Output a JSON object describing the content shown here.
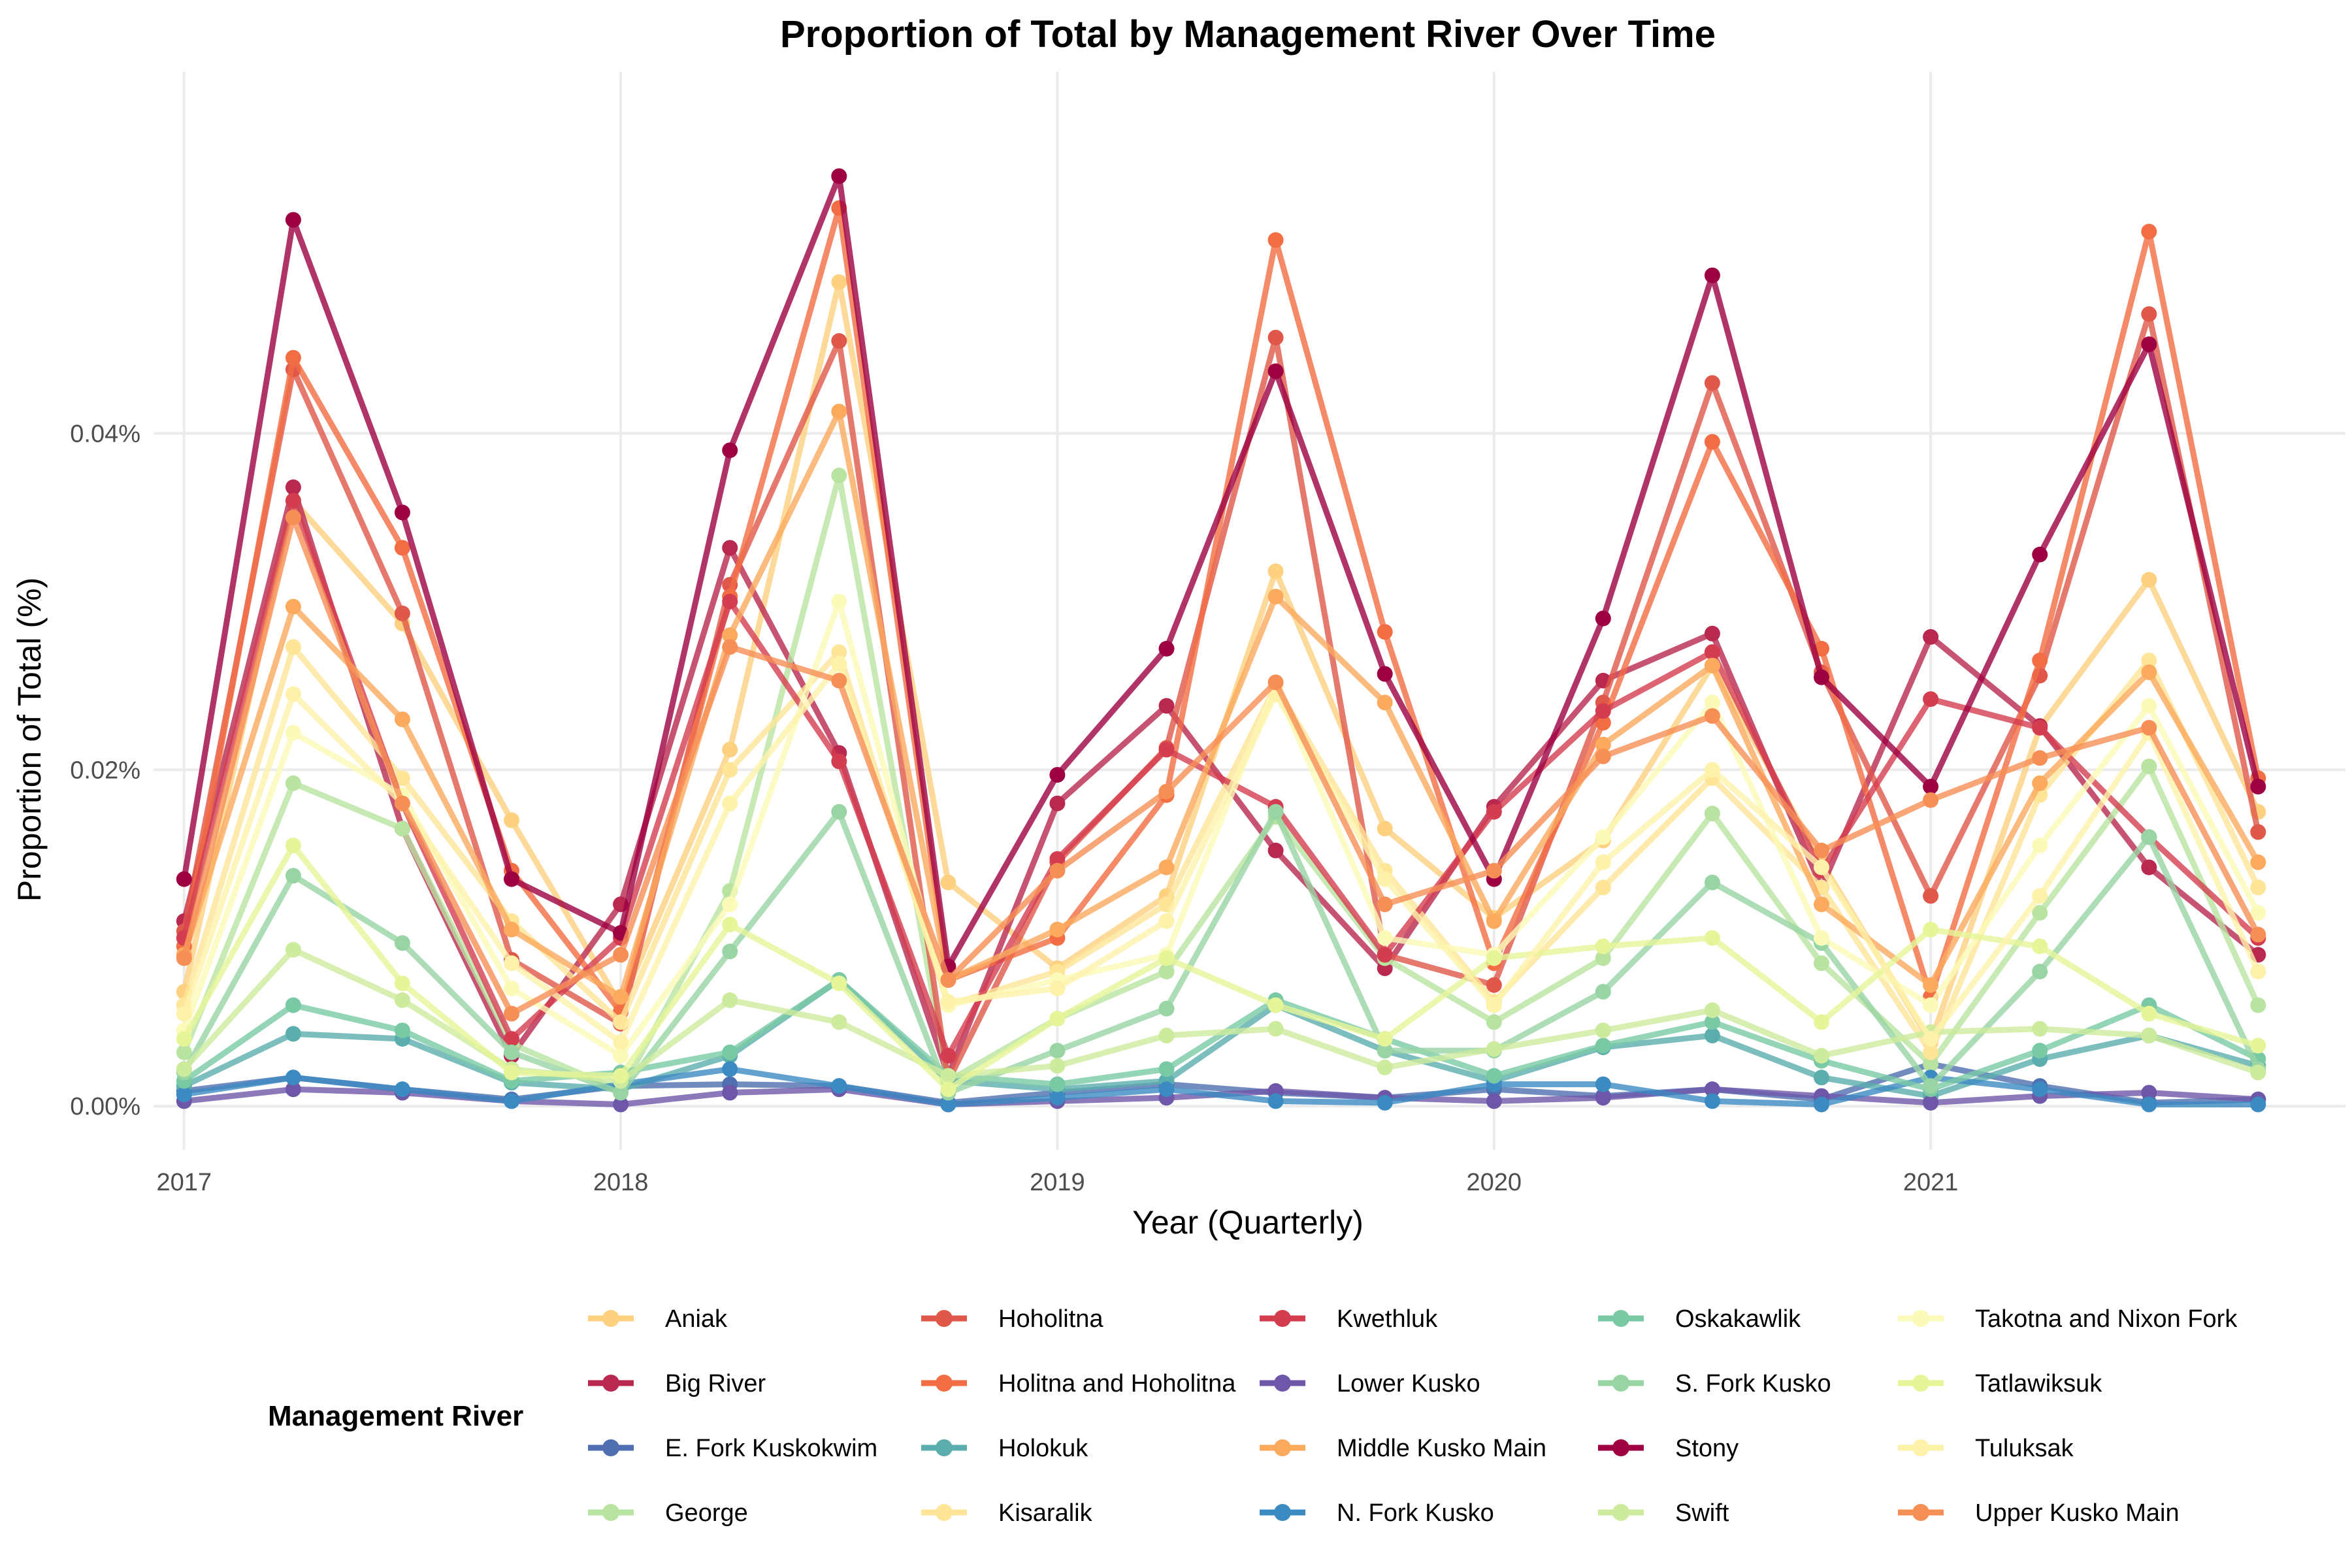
{
  "chart_data": {
    "type": "line",
    "title": "Proportion of Total by Management River Over Time",
    "xlabel": "Year (Quarterly)",
    "ylabel": "Proportion of Total (%)",
    "x": [
      2017.0,
      2017.25,
      2017.5,
      2017.75,
      2018.0,
      2018.25,
      2018.5,
      2018.75,
      2019.0,
      2019.25,
      2019.5,
      2019.75,
      2020.0,
      2020.25,
      2020.5,
      2020.75,
      2021.0,
      2021.25,
      2021.5,
      2021.75
    ],
    "xlim": [
      2016.93,
      2021.95
    ],
    "ylim": [
      -0.0026,
      0.0615
    ],
    "x_ticks": [
      2017,
      2018,
      2019,
      2020,
      2021
    ],
    "x_tick_labels": [
      "2017",
      "2018",
      "2019",
      "2020",
      "2021"
    ],
    "y_ticks": [
      0,
      0.02,
      0.04
    ],
    "y_tick_labels": [
      "0.00%",
      "0.02%",
      "0.04%"
    ],
    "grid": true,
    "legend": {
      "title": "Management River",
      "placement": "bottom",
      "columns": 5
    },
    "series": [
      {
        "name": "Aniak",
        "color": "#FDD17F",
        "values": [
          0.0068,
          0.036,
          0.0287,
          0.017,
          0.006,
          0.0212,
          0.049,
          0.0133,
          0.0082,
          0.0125,
          0.0318,
          0.0165,
          0.0112,
          0.0158,
          0.0262,
          0.0145,
          0.0038,
          0.0225,
          0.0313,
          0.0175
        ]
      },
      {
        "name": "Big River",
        "color": "#B8284F",
        "values": [
          0.011,
          0.0368,
          0.0165,
          0.003,
          0.012,
          0.0332,
          0.021,
          0.0018,
          0.018,
          0.0238,
          0.0152,
          0.0082,
          0.0178,
          0.0253,
          0.0281,
          0.013,
          0.0279,
          0.0226,
          0.0142,
          0.009
        ]
      },
      {
        "name": "E. Fork Kuskokwim",
        "color": "#4F6FB0",
        "values": [
          0.0009,
          0.0017,
          0.001,
          0.0004,
          0.0012,
          0.0013,
          0.0012,
          0.0002,
          0.0008,
          0.0013,
          0.0008,
          0.0005,
          0.001,
          0.0006,
          0.001,
          0.0004,
          0.0025,
          0.0012,
          0.0002,
          0.0004
        ]
      },
      {
        "name": "George",
        "color": "#B9E3A1",
        "values": [
          0.0032,
          0.0192,
          0.0165,
          0.0037,
          0.0009,
          0.0128,
          0.0375,
          0.0015,
          0.0052,
          0.008,
          0.0172,
          0.0088,
          0.005,
          0.0088,
          0.0174,
          0.0085,
          0.0025,
          0.0115,
          0.0202,
          0.006
        ]
      },
      {
        "name": "Hoholitna",
        "color": "#E0584A",
        "values": [
          0.0104,
          0.0438,
          0.0293,
          0.0087,
          0.0049,
          0.031,
          0.0455,
          0.0015,
          0.0145,
          0.0213,
          0.0457,
          0.009,
          0.0072,
          0.024,
          0.043,
          0.0258,
          0.0125,
          0.0256,
          0.0471,
          0.0163
        ]
      },
      {
        "name": "Holitna and Hoholitna",
        "color": "#F26D44",
        "values": [
          0.0095,
          0.0445,
          0.0332,
          0.014,
          0.0056,
          0.0303,
          0.0534,
          0.0075,
          0.01,
          0.0185,
          0.0515,
          0.0282,
          0.0085,
          0.0228,
          0.0395,
          0.0272,
          0.0065,
          0.0265,
          0.052,
          0.0195
        ]
      },
      {
        "name": "Holokuk",
        "color": "#5BAEAD",
        "values": [
          0.0012,
          0.0043,
          0.004,
          0.0014,
          0.001,
          0.003,
          0.0075,
          0.0015,
          0.001,
          0.0015,
          0.006,
          0.0033,
          0.0015,
          0.0035,
          0.0042,
          0.0017,
          0.0006,
          0.0028,
          0.0042,
          0.0024
        ]
      },
      {
        "name": "Kisaralik",
        "color": "#FEE597",
        "values": [
          0.006,
          0.0273,
          0.0195,
          0.011,
          0.005,
          0.02,
          0.027,
          0.006,
          0.008,
          0.012,
          0.025,
          0.014,
          0.0062,
          0.013,
          0.0195,
          0.013,
          0.0032,
          0.0185,
          0.0265,
          0.013
        ]
      },
      {
        "name": "Kwethluk",
        "color": "#D43D4F",
        "values": [
          0.01,
          0.036,
          0.018,
          0.004,
          0.01,
          0.03,
          0.0205,
          0.003,
          0.0147,
          0.0212,
          0.0178,
          0.009,
          0.0175,
          0.0235,
          0.027,
          0.014,
          0.0242,
          0.0225,
          0.016,
          0.01
        ]
      },
      {
        "name": "Lower Kusko",
        "color": "#6E57A9",
        "values": [
          0.0003,
          0.001,
          0.0008,
          0.0003,
          0.0001,
          0.0008,
          0.001,
          0.0001,
          0.0003,
          0.0005,
          0.0009,
          0.0005,
          0.0003,
          0.0005,
          0.001,
          0.0006,
          0.0002,
          0.0006,
          0.0008,
          0.0004
        ]
      },
      {
        "name": "Middle Kusko Main",
        "color": "#FBAA5E",
        "values": [
          0.009,
          0.0297,
          0.023,
          0.0105,
          0.0065,
          0.028,
          0.0413,
          0.0075,
          0.0105,
          0.0142,
          0.0303,
          0.024,
          0.011,
          0.0215,
          0.0262,
          0.012,
          0.0072,
          0.0192,
          0.0258,
          0.0145
        ]
      },
      {
        "name": "N. Fork Kusko",
        "color": "#3C8AC2",
        "values": [
          0.0007,
          0.0017,
          0.001,
          0.0003,
          0.0013,
          0.0022,
          0.0012,
          0.0001,
          0.0005,
          0.001,
          0.0003,
          0.0002,
          0.0013,
          0.0013,
          0.0003,
          0.0001,
          0.0017,
          0.001,
          0.0001,
          0.0001
        ]
      },
      {
        "name": "Oskakawlik",
        "color": "#79C9A5",
        "values": [
          0.0015,
          0.006,
          0.0045,
          0.0015,
          0.002,
          0.0032,
          0.0075,
          0.0018,
          0.0013,
          0.0022,
          0.0063,
          0.004,
          0.0018,
          0.0036,
          0.005,
          0.0027,
          0.001,
          0.0033,
          0.006,
          0.0028
        ]
      },
      {
        "name": "S. Fork Kusko",
        "color": "#99D5A4",
        "values": [
          0.002,
          0.0137,
          0.0097,
          0.0032,
          0.0008,
          0.0092,
          0.0175,
          0.0008,
          0.0033,
          0.0058,
          0.0175,
          0.0033,
          0.0033,
          0.0068,
          0.0133,
          0.0097,
          0.0012,
          0.008,
          0.016,
          0.0022
        ]
      },
      {
        "name": "Stony",
        "color": "#9E0142",
        "values": [
          0.0135,
          0.0527,
          0.0353,
          0.0135,
          0.0103,
          0.039,
          0.0553,
          0.0083,
          0.0197,
          0.0272,
          0.0437,
          0.0257,
          0.0135,
          0.029,
          0.0494,
          0.0255,
          0.019,
          0.0328,
          0.0453,
          0.019
        ]
      },
      {
        "name": "Swift",
        "color": "#CDEB9C",
        "values": [
          0.0022,
          0.0093,
          0.0063,
          0.0022,
          0.0015,
          0.0063,
          0.005,
          0.0018,
          0.0024,
          0.0042,
          0.0046,
          0.0023,
          0.0034,
          0.0045,
          0.0057,
          0.003,
          0.0044,
          0.0046,
          0.0042,
          0.002
        ]
      },
      {
        "name": "Takotna and Nixon Fork",
        "color": "#FBFAB8",
        "values": [
          0.0045,
          0.0222,
          0.0185,
          0.007,
          0.003,
          0.012,
          0.03,
          0.006,
          0.0075,
          0.009,
          0.025,
          0.01,
          0.009,
          0.016,
          0.024,
          0.01,
          0.006,
          0.0155,
          0.0238,
          0.0115
        ]
      },
      {
        "name": "Tatlawiksuk",
        "color": "#E6F598",
        "values": [
          0.004,
          0.0155,
          0.0073,
          0.002,
          0.0018,
          0.0108,
          0.0073,
          0.001,
          0.0052,
          0.0088,
          0.006,
          0.004,
          0.0088,
          0.0095,
          0.01,
          0.005,
          0.0105,
          0.0095,
          0.0055,
          0.0036
        ]
      },
      {
        "name": "Tuluksak",
        "color": "#FEF2AB",
        "values": [
          0.0055,
          0.0245,
          0.018,
          0.0085,
          0.0038,
          0.018,
          0.0263,
          0.0062,
          0.007,
          0.011,
          0.0245,
          0.0135,
          0.006,
          0.0145,
          0.02,
          0.0142,
          0.004,
          0.0125,
          0.0222,
          0.008
        ]
      },
      {
        "name": "Upper Kusko Main",
        "color": "#F68F56",
        "values": [
          0.0088,
          0.035,
          0.018,
          0.0055,
          0.009,
          0.0273,
          0.0253,
          0.0075,
          0.014,
          0.0187,
          0.0252,
          0.012,
          0.014,
          0.0208,
          0.0232,
          0.0152,
          0.0182,
          0.0207,
          0.0225,
          0.0102
        ]
      }
    ]
  }
}
